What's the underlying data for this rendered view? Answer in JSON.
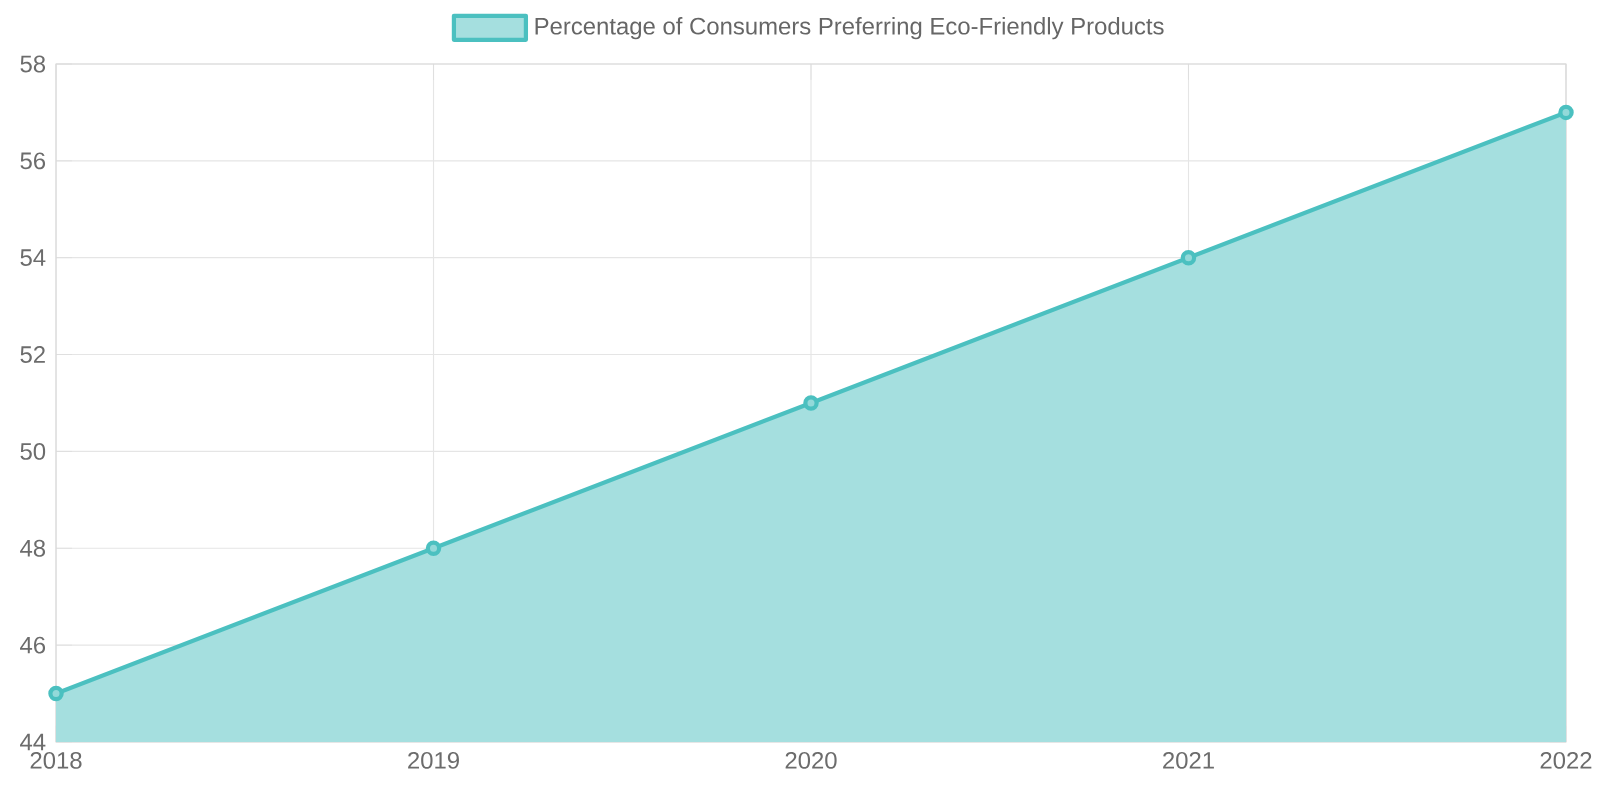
{
  "chart_data": {
    "type": "area",
    "categories": [
      "2018",
      "2019",
      "2020",
      "2021",
      "2022"
    ],
    "series": [
      {
        "name": "Percentage of Consumers Preferring Eco-Friendly Products",
        "color": "#4bc0c0",
        "values": [
          45,
          48,
          51,
          54,
          57
        ]
      }
    ],
    "ylim": [
      44,
      58
    ],
    "yticks": [
      44,
      46,
      48,
      50,
      52,
      54,
      56,
      58
    ],
    "grid": true,
    "legend": "top",
    "marker": "circle"
  }
}
